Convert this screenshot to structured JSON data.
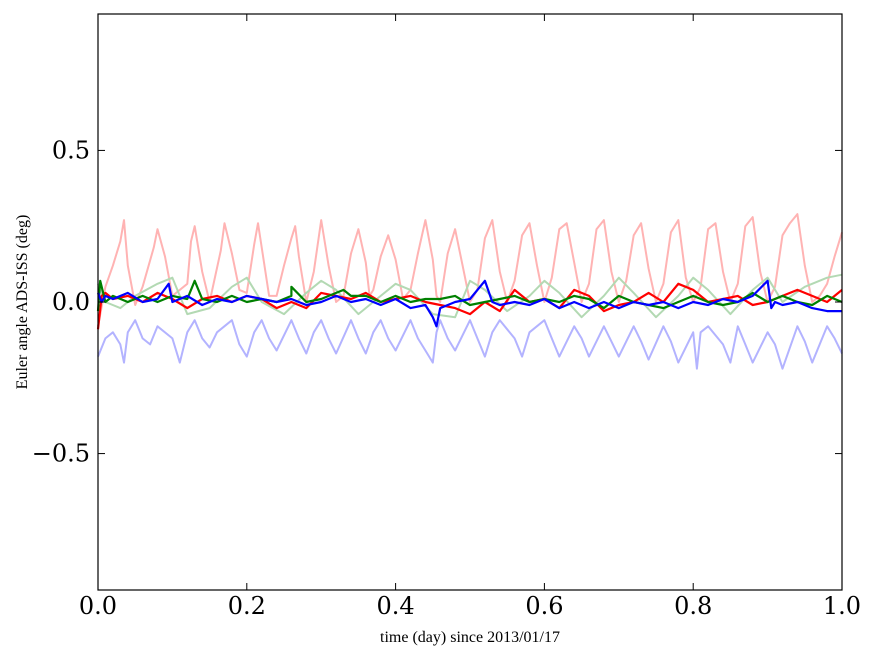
{
  "chart_data": {
    "type": "line",
    "title": "",
    "xlabel": "time (day) since 2013/01/17",
    "ylabel": "Euler angle ADS-ISS (deg)",
    "xlim": [
      0.0,
      1.0
    ],
    "ylim": [
      -0.95,
      0.95
    ],
    "xticks": [
      0.0,
      0.2,
      0.4,
      0.6,
      0.8,
      1.0
    ],
    "xtick_labels": [
      "0.0",
      "0.2",
      "0.4",
      "0.6",
      "0.8",
      "1.0"
    ],
    "yticks": [
      0.5,
      0.0,
      -0.5
    ],
    "ytick_labels": [
      "0.5",
      "0.0",
      "−0.5"
    ],
    "grid": false,
    "legend": "none",
    "series": [
      {
        "color": "#ffb3b3",
        "faint": true,
        "x": [
          0.0,
          0.01,
          0.02,
          0.03,
          0.035,
          0.04,
          0.05,
          0.06,
          0.075,
          0.08,
          0.09,
          0.1,
          0.12,
          0.125,
          0.13,
          0.14,
          0.15,
          0.165,
          0.17,
          0.18,
          0.19,
          0.2,
          0.21,
          0.215,
          0.22,
          0.23,
          0.24,
          0.25,
          0.26,
          0.265,
          0.27,
          0.28,
          0.29,
          0.3,
          0.31,
          0.32,
          0.33,
          0.34,
          0.35,
          0.36,
          0.365,
          0.37,
          0.38,
          0.39,
          0.4,
          0.41,
          0.42,
          0.43,
          0.44,
          0.45,
          0.455,
          0.46,
          0.47,
          0.48,
          0.49,
          0.5,
          0.51,
          0.52,
          0.53,
          0.54,
          0.55,
          0.56,
          0.57,
          0.58,
          0.59,
          0.6,
          0.61,
          0.62,
          0.63,
          0.64,
          0.65,
          0.66,
          0.67,
          0.68,
          0.69,
          0.7,
          0.71,
          0.72,
          0.73,
          0.74,
          0.75,
          0.76,
          0.77,
          0.78,
          0.79,
          0.8,
          0.81,
          0.82,
          0.83,
          0.84,
          0.85,
          0.86,
          0.87,
          0.88,
          0.89,
          0.9,
          0.91,
          0.92,
          0.93,
          0.94,
          0.95,
          0.96,
          0.97,
          0.98,
          0.99,
          1.0
        ],
        "y": [
          -0.08,
          0.05,
          0.12,
          0.2,
          0.27,
          0.12,
          -0.01,
          0.05,
          0.18,
          0.24,
          0.15,
          0.02,
          0.06,
          0.2,
          0.25,
          0.1,
          0.0,
          0.17,
          0.26,
          0.16,
          0.04,
          0.03,
          0.19,
          0.26,
          0.18,
          0.02,
          0.02,
          0.12,
          0.21,
          0.25,
          0.15,
          0.0,
          0.1,
          0.27,
          0.12,
          0.0,
          0.02,
          0.16,
          0.24,
          0.13,
          0.02,
          0.04,
          0.15,
          0.22,
          0.14,
          0.01,
          0.04,
          0.16,
          0.27,
          0.14,
          0.02,
          0.0,
          0.16,
          0.24,
          0.12,
          0.0,
          0.04,
          0.21,
          0.27,
          0.1,
          0.0,
          0.07,
          0.22,
          0.26,
          0.12,
          0.0,
          0.08,
          0.24,
          0.26,
          0.13,
          0.0,
          0.06,
          0.24,
          0.27,
          0.1,
          0.0,
          0.07,
          0.22,
          0.26,
          0.11,
          0.0,
          0.06,
          0.23,
          0.27,
          0.08,
          0.0,
          0.05,
          0.24,
          0.26,
          0.1,
          0.0,
          0.06,
          0.25,
          0.28,
          0.1,
          0.0,
          0.05,
          0.22,
          0.26,
          0.29,
          0.12,
          0.0,
          0.02,
          0.06,
          0.15,
          0.23
        ]
      },
      {
        "color": "#b3d9b3",
        "faint": true,
        "x": [
          0.0,
          0.01,
          0.03,
          0.05,
          0.08,
          0.1,
          0.12,
          0.15,
          0.18,
          0.2,
          0.22,
          0.25,
          0.28,
          0.3,
          0.32,
          0.35,
          0.38,
          0.4,
          0.42,
          0.45,
          0.48,
          0.5,
          0.52,
          0.55,
          0.58,
          0.6,
          0.62,
          0.65,
          0.68,
          0.7,
          0.72,
          0.75,
          0.78,
          0.8,
          0.82,
          0.85,
          0.88,
          0.9,
          0.92,
          0.95,
          0.98,
          1.0
        ],
        "y": [
          0.06,
          0.0,
          -0.02,
          0.02,
          0.06,
          0.08,
          -0.04,
          -0.02,
          0.05,
          0.08,
          0.0,
          -0.04,
          0.03,
          0.07,
          0.04,
          -0.04,
          0.02,
          0.06,
          0.04,
          -0.04,
          -0.05,
          0.07,
          0.04,
          -0.03,
          0.02,
          0.07,
          0.03,
          -0.05,
          0.02,
          0.08,
          0.03,
          -0.05,
          0.02,
          0.08,
          0.04,
          -0.04,
          0.04,
          0.08,
          0.0,
          0.05,
          0.08,
          0.09
        ]
      },
      {
        "color": "#b3b3ff",
        "faint": true,
        "x": [
          0.0,
          0.01,
          0.02,
          0.03,
          0.035,
          0.04,
          0.05,
          0.06,
          0.07,
          0.08,
          0.1,
          0.11,
          0.12,
          0.13,
          0.14,
          0.15,
          0.16,
          0.18,
          0.19,
          0.2,
          0.21,
          0.22,
          0.23,
          0.24,
          0.26,
          0.27,
          0.28,
          0.29,
          0.3,
          0.31,
          0.32,
          0.34,
          0.35,
          0.36,
          0.37,
          0.38,
          0.39,
          0.4,
          0.42,
          0.43,
          0.44,
          0.45,
          0.455,
          0.46,
          0.47,
          0.48,
          0.5,
          0.51,
          0.52,
          0.53,
          0.54,
          0.56,
          0.57,
          0.58,
          0.6,
          0.61,
          0.62,
          0.64,
          0.65,
          0.66,
          0.68,
          0.69,
          0.7,
          0.72,
          0.73,
          0.74,
          0.76,
          0.77,
          0.78,
          0.8,
          0.805,
          0.81,
          0.82,
          0.84,
          0.85,
          0.86,
          0.87,
          0.88,
          0.9,
          0.91,
          0.92,
          0.94,
          0.95,
          0.96,
          0.98,
          0.99,
          1.0
        ],
        "y": [
          -0.18,
          -0.12,
          -0.1,
          -0.14,
          -0.2,
          -0.1,
          -0.06,
          -0.12,
          -0.14,
          -0.08,
          -0.12,
          -0.2,
          -0.1,
          -0.06,
          -0.12,
          -0.15,
          -0.1,
          -0.06,
          -0.14,
          -0.18,
          -0.1,
          -0.06,
          -0.12,
          -0.16,
          -0.06,
          -0.12,
          -0.17,
          -0.1,
          -0.06,
          -0.12,
          -0.17,
          -0.06,
          -0.12,
          -0.17,
          -0.1,
          -0.06,
          -0.12,
          -0.16,
          -0.06,
          -0.12,
          -0.16,
          -0.2,
          -0.1,
          -0.06,
          -0.12,
          -0.16,
          -0.06,
          -0.12,
          -0.18,
          -0.1,
          -0.06,
          -0.12,
          -0.18,
          -0.1,
          -0.06,
          -0.12,
          -0.18,
          -0.08,
          -0.12,
          -0.18,
          -0.08,
          -0.13,
          -0.18,
          -0.08,
          -0.13,
          -0.19,
          -0.08,
          -0.13,
          -0.2,
          -0.1,
          -0.22,
          -0.1,
          -0.08,
          -0.14,
          -0.2,
          -0.08,
          -0.14,
          -0.2,
          -0.1,
          -0.14,
          -0.22,
          -0.08,
          -0.13,
          -0.2,
          -0.08,
          -0.12,
          -0.17
        ]
      },
      {
        "color": "#ff0000",
        "faint": false,
        "x": [
          0.0,
          0.005,
          0.01,
          0.02,
          0.04,
          0.06,
          0.08,
          0.1,
          0.12,
          0.14,
          0.16,
          0.18,
          0.2,
          0.22,
          0.24,
          0.26,
          0.28,
          0.3,
          0.32,
          0.34,
          0.36,
          0.38,
          0.4,
          0.42,
          0.44,
          0.46,
          0.48,
          0.5,
          0.52,
          0.54,
          0.56,
          0.58,
          0.6,
          0.62,
          0.64,
          0.66,
          0.68,
          0.7,
          0.72,
          0.74,
          0.76,
          0.78,
          0.8,
          0.82,
          0.84,
          0.86,
          0.88,
          0.9,
          0.92,
          0.94,
          0.96,
          0.98,
          1.0
        ],
        "y": [
          -0.09,
          0.02,
          0.03,
          0.01,
          0.02,
          0.0,
          0.03,
          0.01,
          -0.02,
          0.01,
          0.02,
          0.0,
          0.02,
          0.01,
          -0.02,
          0.0,
          -0.02,
          0.03,
          0.02,
          0.01,
          0.03,
          0.0,
          0.01,
          0.02,
          0.0,
          -0.01,
          -0.02,
          -0.04,
          0.0,
          -0.03,
          0.04,
          0.0,
          0.01,
          -0.02,
          0.04,
          0.02,
          -0.03,
          -0.01,
          0.0,
          0.03,
          0.0,
          0.06,
          0.04,
          0.0,
          0.01,
          0.02,
          -0.01,
          0.0,
          0.02,
          0.04,
          0.02,
          0.0,
          0.04
        ]
      },
      {
        "color": "#008000",
        "faint": false,
        "x": [
          0.0,
          0.003,
          0.01,
          0.02,
          0.04,
          0.06,
          0.08,
          0.1,
          0.12,
          0.13,
          0.14,
          0.16,
          0.18,
          0.2,
          0.22,
          0.24,
          0.26,
          0.26,
          0.28,
          0.3,
          0.32,
          0.33,
          0.34,
          0.36,
          0.38,
          0.4,
          0.42,
          0.44,
          0.46,
          0.48,
          0.5,
          0.52,
          0.54,
          0.56,
          0.58,
          0.6,
          0.62,
          0.64,
          0.66,
          0.68,
          0.7,
          0.72,
          0.74,
          0.76,
          0.78,
          0.8,
          0.82,
          0.84,
          0.86,
          0.88,
          0.9,
          0.92,
          0.94,
          0.96,
          0.98,
          1.0
        ],
        "y": [
          -0.03,
          0.07,
          0.0,
          0.02,
          0.0,
          0.02,
          0.0,
          0.02,
          0.01,
          0.07,
          0.01,
          0.0,
          0.02,
          0.0,
          0.01,
          0.0,
          0.02,
          0.05,
          0.0,
          0.01,
          0.03,
          0.04,
          0.02,
          0.02,
          0.0,
          0.02,
          0.0,
          0.01,
          0.01,
          0.02,
          -0.01,
          0.0,
          0.01,
          0.02,
          0.0,
          0.01,
          0.0,
          0.02,
          0.01,
          -0.02,
          0.02,
          0.0,
          -0.01,
          -0.02,
          0.0,
          0.02,
          0.0,
          -0.01,
          0.0,
          0.03,
          0.0,
          0.02,
          0.0,
          -0.01,
          0.02,
          0.0
        ]
      },
      {
        "color": "#0000ff",
        "faint": false,
        "x": [
          0.0,
          0.005,
          0.01,
          0.02,
          0.04,
          0.06,
          0.08,
          0.095,
          0.1,
          0.12,
          0.14,
          0.16,
          0.18,
          0.2,
          0.22,
          0.24,
          0.26,
          0.28,
          0.3,
          0.32,
          0.34,
          0.36,
          0.38,
          0.4,
          0.42,
          0.44,
          0.45,
          0.455,
          0.46,
          0.48,
          0.5,
          0.52,
          0.53,
          0.54,
          0.56,
          0.58,
          0.6,
          0.62,
          0.64,
          0.66,
          0.68,
          0.7,
          0.72,
          0.74,
          0.76,
          0.78,
          0.8,
          0.82,
          0.84,
          0.86,
          0.88,
          0.9,
          0.905,
          0.91,
          0.92,
          0.94,
          0.96,
          0.98,
          1.0
        ],
        "y": [
          0.03,
          0.0,
          0.02,
          0.01,
          0.03,
          0.0,
          0.01,
          0.06,
          0.0,
          0.02,
          -0.01,
          0.01,
          0.0,
          0.02,
          0.01,
          0.0,
          0.01,
          -0.01,
          0.0,
          0.02,
          0.0,
          0.01,
          -0.01,
          0.01,
          -0.02,
          -0.01,
          -0.05,
          -0.08,
          -0.02,
          0.0,
          0.01,
          0.07,
          0.0,
          -0.01,
          0.0,
          -0.01,
          0.01,
          -0.02,
          0.0,
          -0.02,
          0.0,
          -0.02,
          0.0,
          -0.01,
          0.0,
          -0.02,
          0.0,
          -0.01,
          0.01,
          0.0,
          0.02,
          0.07,
          -0.02,
          0.0,
          -0.01,
          0.0,
          -0.02,
          -0.03,
          -0.03
        ]
      }
    ]
  }
}
